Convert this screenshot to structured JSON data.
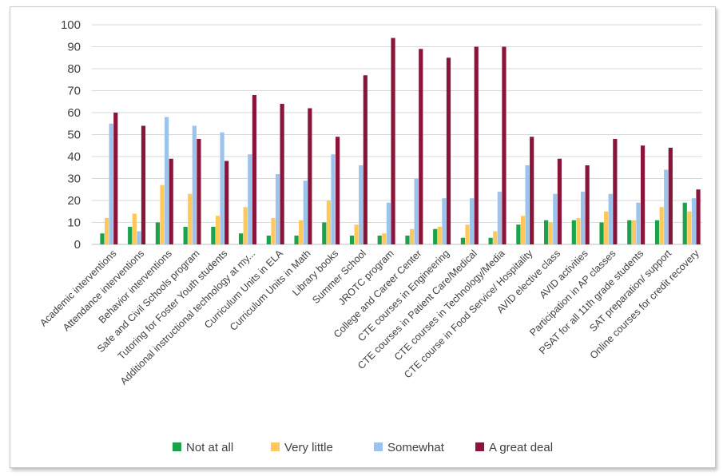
{
  "chart_data": {
    "type": "bar",
    "ylim": [
      0,
      100
    ],
    "yticks": [
      0,
      10,
      20,
      30,
      40,
      50,
      60,
      70,
      80,
      90,
      100
    ],
    "grid": true,
    "legend_position": "bottom",
    "categories": [
      "Academic interventions",
      "Attendance interventions",
      "Behavior interventions",
      "Safe and Civil Schools program",
      "Tutoring for Foster Youth students",
      "Additional instructional technology at my...",
      "Curriculum Units in ELA",
      "Curriculum Units in Math",
      "Library books",
      "Summer School",
      "JROTC program",
      "College and Career Center",
      "CTE courses in Engineering",
      "CTE courses in Patient Care/Medical",
      "CTE courses in Technology/Media",
      "CTE course in Food Service/ Hospitality",
      "AVID elective class",
      "AVID activities",
      "Participation in AP classes",
      "PSAT for all 11th grade students",
      "SAT preparation/ support",
      "Online courses for credit recovery"
    ],
    "series": [
      {
        "name": "Not at all",
        "color": "#1aa34a",
        "values": [
          5,
          8,
          10,
          8,
          8,
          5,
          4,
          4,
          10,
          4,
          4,
          4,
          7,
          3,
          3,
          9,
          11,
          11,
          10,
          11,
          11,
          19
        ]
      },
      {
        "name": "Very little",
        "color": "#ffc85a",
        "values": [
          12,
          14,
          27,
          23,
          13,
          17,
          12,
          11,
          20,
          9,
          5,
          7,
          8,
          9,
          6,
          13,
          10,
          12,
          15,
          11,
          17,
          15
        ]
      },
      {
        "name": "Somewhat",
        "color": "#9cc3ec",
        "values": [
          55,
          6,
          58,
          54,
          51,
          41,
          32,
          29,
          41,
          36,
          19,
          30,
          21,
          21,
          24,
          36,
          23,
          24,
          23,
          19,
          34,
          21
        ]
      },
      {
        "name": "A great deal",
        "color": "#8b1538",
        "values": [
          60,
          54,
          39,
          48,
          38,
          68,
          64,
          62,
          49,
          77,
          94,
          89,
          85,
          90,
          90,
          49,
          39,
          36,
          48,
          45,
          44,
          25
        ]
      }
    ]
  }
}
